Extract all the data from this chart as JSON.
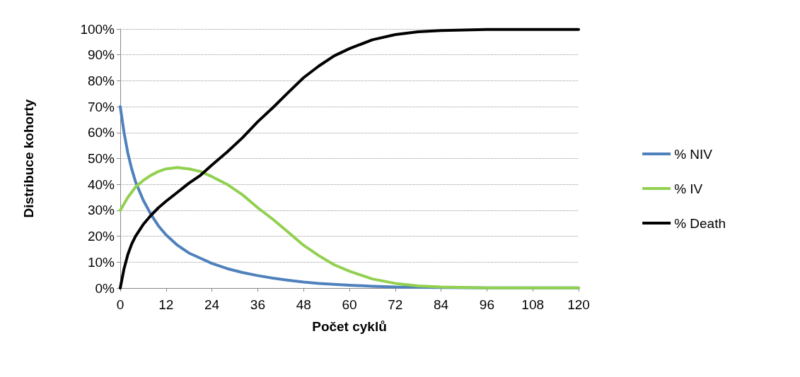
{
  "chart_data": {
    "type": "line",
    "xlabel": "Počet cyklů",
    "ylabel": "Distribuce kohorty",
    "x": [
      0,
      1,
      2,
      3,
      4,
      6,
      8,
      10,
      12,
      15,
      18,
      21,
      24,
      28,
      32,
      36,
      40,
      44,
      48,
      52,
      56,
      60,
      66,
      72,
      78,
      84,
      96,
      108,
      120
    ],
    "series": [
      {
        "name": "% NIV",
        "color": "#4f81bd",
        "values": [
          70,
          60,
          52,
          46,
          41,
          34,
          28.5,
          24,
          20.5,
          16.5,
          13.5,
          11.5,
          9.5,
          7.5,
          6,
          4.8,
          3.8,
          3,
          2.3,
          1.8,
          1.4,
          1.1,
          0.7,
          0.4,
          0.3,
          0.2,
          0.1,
          0.1,
          0.1
        ]
      },
      {
        "name": "% IV",
        "color": "#92d050",
        "values": [
          30,
          32.5,
          35,
          37,
          39,
          41.5,
          43.5,
          45,
          46,
          46.5,
          46,
          45,
          43,
          40,
          36,
          31,
          26.5,
          21.5,
          16.5,
          12.5,
          9,
          6.5,
          3.5,
          1.8,
          0.8,
          0.4,
          0.1,
          0.1,
          0.1
        ]
      },
      {
        "name": "% Death",
        "color": "#000000",
        "values": [
          0,
          7.5,
          13,
          17,
          20,
          24.5,
          28,
          31,
          33.5,
          37,
          40.5,
          43.5,
          47.5,
          52.5,
          58,
          64.2,
          69.7,
          75.5,
          81.2,
          85.7,
          89.6,
          92.4,
          95.8,
          97.8,
          98.9,
          99.4,
          99.8,
          99.8,
          99.8
        ]
      }
    ],
    "xlim": [
      0,
      120
    ],
    "xticks": [
      0,
      12,
      24,
      36,
      48,
      60,
      72,
      84,
      96,
      108,
      120
    ],
    "ylim": [
      0,
      100
    ],
    "yticks": [
      {
        "value": 0,
        "label": "0%"
      },
      {
        "value": 10,
        "label": "10%"
      },
      {
        "value": 20,
        "label": "20%"
      },
      {
        "value": 30,
        "label": "30%"
      },
      {
        "value": 40,
        "label": "40%"
      },
      {
        "value": 50,
        "label": "50%"
      },
      {
        "value": 60,
        "label": "60%"
      },
      {
        "value": 70,
        "label": "70%"
      },
      {
        "value": 80,
        "label": "80%"
      },
      {
        "value": 90,
        "label": "90%"
      },
      {
        "value": 100,
        "label": "100%"
      }
    ],
    "grid": "y",
    "legend": "right",
    "marker": "none",
    "line_style": "solid"
  }
}
